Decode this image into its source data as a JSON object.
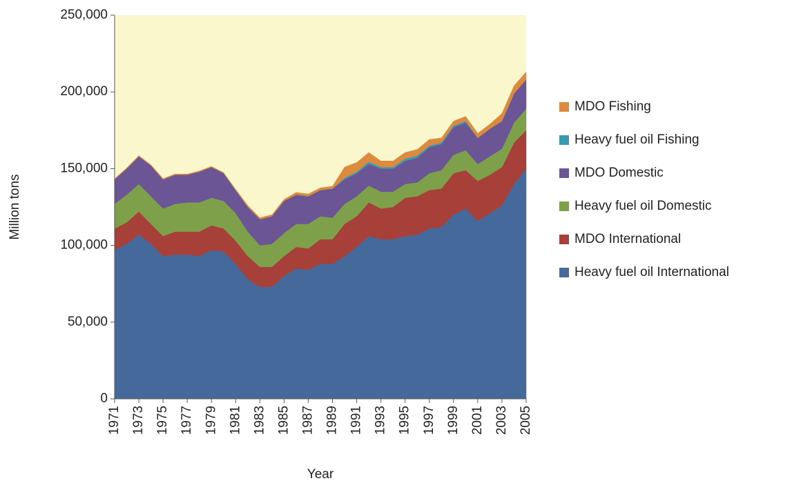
{
  "chart_data": {
    "type": "stacked_area",
    "x_label": "Year",
    "y_label": "Million tons",
    "x": [
      1971,
      1972,
      1973,
      1974,
      1975,
      1976,
      1977,
      1978,
      1979,
      1980,
      1981,
      1982,
      1983,
      1984,
      1985,
      1986,
      1987,
      1988,
      1989,
      1990,
      1991,
      1992,
      1993,
      1994,
      1995,
      1996,
      1997,
      1998,
      1999,
      2000,
      2001,
      2002,
      2003,
      2004,
      2005
    ],
    "xlim": [
      1971,
      2005
    ],
    "xticks": [
      1971,
      1973,
      1975,
      1977,
      1979,
      1981,
      1983,
      1985,
      1987,
      1989,
      1991,
      1993,
      1995,
      1997,
      1999,
      2001,
      2003,
      2005
    ],
    "ylim": [
      0,
      250000
    ],
    "yticks": [
      0,
      {
        "value": 50000,
        "label": "50,000"
      },
      {
        "value": 100000,
        "label": "100,000"
      },
      {
        "value": 150000,
        "label": "150,000"
      },
      {
        "value": 200000,
        "label": "200,000"
      },
      {
        "value": 250000,
        "label": "250,000"
      }
    ],
    "background": "#fbf7cc",
    "series": [
      {
        "name": "Heavy fuel oil International",
        "color": "#46699b",
        "values": [
          97000,
          101000,
          107000,
          101000,
          93000,
          94000,
          94000,
          93000,
          97000,
          96000,
          88000,
          78000,
          73000,
          73000,
          80000,
          85000,
          84000,
          88000,
          88000,
          93000,
          99000,
          106000,
          104000,
          104000,
          106000,
          107000,
          111000,
          112000,
          120000,
          124000,
          116000,
          121000,
          126000,
          140000,
          150000
        ]
      },
      {
        "name": "MDO International",
        "color": "#a8403a",
        "values": [
          14000,
          14000,
          15000,
          13000,
          13000,
          15000,
          15000,
          16000,
          16000,
          15000,
          15000,
          15000,
          13000,
          13000,
          13000,
          14000,
          14000,
          16000,
          16000,
          21000,
          20000,
          22000,
          20000,
          21000,
          25000,
          25000,
          25000,
          25000,
          27000,
          25000,
          26000,
          25000,
          25000,
          27000,
          25000
        ]
      },
      {
        "name": "Heavy fuel oil Domestic",
        "color": "#7ea04a",
        "values": [
          16000,
          18000,
          18000,
          18000,
          18000,
          18000,
          19000,
          19000,
          18000,
          18000,
          18000,
          16000,
          14000,
          15000,
          15000,
          15000,
          16000,
          15000,
          14000,
          13000,
          13000,
          11000,
          11000,
          10000,
          9000,
          9000,
          11000,
          12000,
          12000,
          13000,
          11000,
          12000,
          12000,
          13000,
          14000
        ]
      },
      {
        "name": "MDO Domestic",
        "color": "#6b5595",
        "values": [
          16000,
          17000,
          18000,
          20000,
          19000,
          19000,
          18000,
          20000,
          20000,
          18000,
          15000,
          16000,
          17000,
          18000,
          21000,
          19000,
          18000,
          17000,
          19000,
          16000,
          15000,
          14000,
          15000,
          15000,
          15000,
          16000,
          17000,
          17000,
          18000,
          18000,
          17000,
          18000,
          18000,
          19000,
          19000
        ]
      },
      {
        "name": "Heavy fuel oil Fishing",
        "color": "#3a9bb0",
        "values": [
          0,
          0,
          0,
          0,
          0,
          0,
          0,
          0,
          0,
          0,
          0,
          0,
          0,
          0,
          0,
          0,
          0,
          0,
          0,
          1000,
          1000,
          1500,
          1000,
          1000,
          1500,
          1500,
          1000,
          1000,
          1000,
          1000,
          0,
          0,
          0,
          0,
          0
        ]
      },
      {
        "name": "MDO Fishing",
        "color": "#db8a3e",
        "values": [
          500,
          500,
          500,
          500,
          500,
          500,
          500,
          500,
          500,
          500,
          500,
          1000,
          1000,
          1000,
          1000,
          1500,
          1500,
          1500,
          1500,
          7000,
          6000,
          6000,
          4000,
          4000,
          4000,
          4000,
          4000,
          3000,
          3000,
          3000,
          3000,
          3000,
          5000,
          5000,
          5000
        ]
      }
    ]
  }
}
